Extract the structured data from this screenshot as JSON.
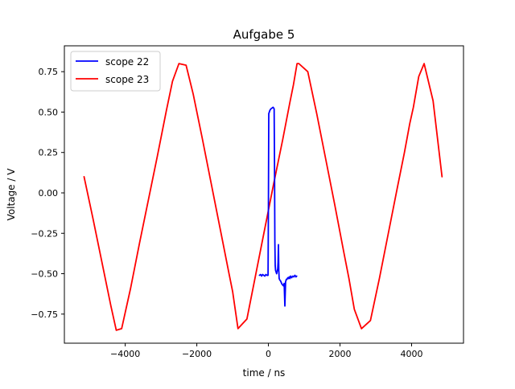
{
  "chart_data": {
    "type": "line",
    "title": "Aufgabe 5",
    "xlabel": "time / ns",
    "ylabel": "Voltage / V",
    "xlim": [
      -5700,
      5450
    ],
    "ylim": [
      -0.93,
      0.91
    ],
    "xticks": [
      -4000,
      -2000,
      0,
      2000,
      4000
    ],
    "xtick_labels": [
      "−4000",
      "−2000",
      "0",
      "2000",
      "4000"
    ],
    "yticks": [
      -0.75,
      -0.5,
      -0.25,
      0.0,
      0.25,
      0.5,
      0.75
    ],
    "ytick_labels": [
      "−0.75",
      "−0.50",
      "−0.25",
      "0.00",
      "0.25",
      "0.50",
      "0.75"
    ],
    "grid": false,
    "legend_position": "top-left",
    "series": [
      {
        "name": "scope 22",
        "color": "#0000ff",
        "x": [
          -250,
          -220,
          -190,
          -160,
          -130,
          -100,
          -70,
          -40,
          -10,
          0,
          10,
          40,
          70,
          100,
          130,
          160,
          170,
          180,
          190,
          200,
          230,
          260,
          270,
          280,
          290,
          300,
          320,
          340,
          360,
          380,
          400,
          420,
          440,
          460,
          480,
          500,
          520,
          540,
          560,
          580,
          600,
          620,
          650,
          680,
          710,
          740,
          770,
          790
        ],
        "y": [
          -0.51,
          -0.505,
          -0.515,
          -0.505,
          -0.51,
          -0.515,
          -0.505,
          -0.51,
          -0.51,
          -0.1,
          0.49,
          0.51,
          0.52,
          0.525,
          0.53,
          0.52,
          0.2,
          -0.3,
          -0.45,
          -0.48,
          -0.5,
          -0.47,
          -0.43,
          -0.32,
          -0.48,
          -0.53,
          -0.54,
          -0.545,
          -0.555,
          -0.565,
          -0.57,
          -0.575,
          -0.56,
          -0.7,
          -0.55,
          -0.535,
          -0.535,
          -0.525,
          -0.53,
          -0.52,
          -0.53,
          -0.515,
          -0.525,
          -0.515,
          -0.52,
          -0.51,
          -0.52,
          -0.515
        ]
      },
      {
        "name": "scope 23",
        "color": "#ff0000",
        "x": [
          -5150,
          -4900,
          -4650,
          -4400,
          -4250,
          -4100,
          -3850,
          -3600,
          -3350,
          -3100,
          -2850,
          -2680,
          -2500,
          -2300,
          -2100,
          -1850,
          -1600,
          -1350,
          -1100,
          -1000,
          -850,
          -600,
          -350,
          -100,
          150,
          400,
          600,
          700,
          800,
          850,
          1100,
          1350,
          1600,
          1850,
          2100,
          2250,
          2400,
          2600,
          2850,
          3100,
          3350,
          3600,
          3800,
          3950,
          4050,
          4200,
          4350,
          4600,
          4850
        ],
        "y": [
          0.1,
          -0.16,
          -0.43,
          -0.7,
          -0.85,
          -0.84,
          -0.59,
          -0.31,
          -0.04,
          0.23,
          0.51,
          0.69,
          0.8,
          0.79,
          0.61,
          0.34,
          0.06,
          -0.22,
          -0.5,
          -0.61,
          -0.84,
          -0.78,
          -0.5,
          -0.22,
          0.06,
          0.33,
          0.56,
          0.67,
          0.8,
          0.8,
          0.75,
          0.49,
          0.21,
          -0.07,
          -0.36,
          -0.53,
          -0.72,
          -0.84,
          -0.79,
          -0.53,
          -0.25,
          0.03,
          0.25,
          0.43,
          0.53,
          0.72,
          0.8,
          0.57,
          0.1
        ]
      }
    ]
  }
}
